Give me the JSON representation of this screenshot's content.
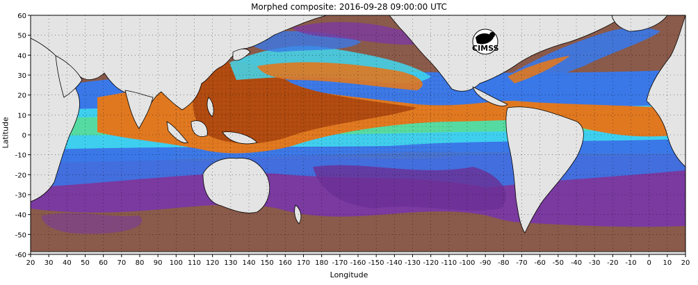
{
  "title": "Morphed composite: 2016-09-28 09:00:00 UTC",
  "xlabel": "Longitude",
  "ylabel": "Latitude",
  "logo_text": "CIMSS",
  "map": {
    "projection": "equirectangular",
    "lon_range": [
      20,
      380
    ],
    "lat_range": [
      -60,
      60
    ],
    "grid": "dotted",
    "x_ticks": [
      "20",
      "30",
      "40",
      "50",
      "60",
      "70",
      "80",
      "90",
      "100",
      "110",
      "120",
      "130",
      "140",
      "150",
      "160",
      "170",
      "180",
      "-170",
      "-160",
      "-150",
      "-140",
      "-130",
      "-120",
      "-110",
      "-100",
      "-90",
      "-80",
      "-70",
      "-60",
      "-50",
      "-40",
      "-30",
      "-20",
      "-10",
      "0",
      "10",
      "20"
    ],
    "y_ticks": [
      "60",
      "50",
      "40",
      "30",
      "20",
      "10",
      "0",
      "-10",
      "-20",
      "-30",
      "-40",
      "-50",
      "-60"
    ],
    "colors": {
      "land": "#e4e4e4",
      "ocean_dry": "#8a5a4a",
      "purple": "#7a3aa0",
      "blue": "#3a78e8",
      "cyan": "#3fd8f0",
      "green": "#60e080",
      "orange": "#e07820",
      "dark_orange": "#b04a10"
    }
  }
}
